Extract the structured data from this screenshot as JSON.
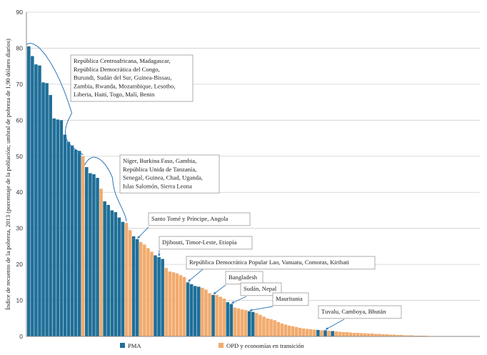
{
  "colors": {
    "pma": "#1f6f98",
    "opd": "#f2ab6d",
    "axis": "#888888",
    "grid": "#cfcfcf",
    "bracket": "#2e74b5"
  },
  "chart_data": {
    "type": "bar",
    "ylabel": "Índice de recuento de la pobreza, 2013 (porcentaje de la población; umbral de pobreza de 1,90 dólares diarios)",
    "ylim": [
      0,
      90
    ],
    "yticks": [
      0,
      10,
      20,
      30,
      40,
      50,
      60,
      70,
      80,
      90
    ],
    "grid": true,
    "legend": {
      "position": "bottom",
      "entries": [
        {
          "key": "P",
          "label": "PMA"
        },
        {
          "key": "O",
          "label": "OPD y economías en transición"
        }
      ]
    },
    "bars": [
      {
        "v": 80.5,
        "g": "P"
      },
      {
        "v": 77.8,
        "g": "P"
      },
      {
        "v": 75.5,
        "g": "P"
      },
      {
        "v": 75.2,
        "g": "P"
      },
      {
        "v": 70.5,
        "g": "P"
      },
      {
        "v": 70.3,
        "g": "P"
      },
      {
        "v": 67.0,
        "g": "P"
      },
      {
        "v": 60.5,
        "g": "P"
      },
      {
        "v": 60.2,
        "g": "P"
      },
      {
        "v": 60.0,
        "g": "P"
      },
      {
        "v": 56.0,
        "g": "P"
      },
      {
        "v": 54.0,
        "g": "P"
      },
      {
        "v": 53.0,
        "g": "P"
      },
      {
        "v": 51.8,
        "g": "P"
      },
      {
        "v": 51.5,
        "g": "P"
      },
      {
        "v": 50.0,
        "g": "O"
      },
      {
        "v": 47.0,
        "g": "P"
      },
      {
        "v": 45.3,
        "g": "P"
      },
      {
        "v": 45.0,
        "g": "P"
      },
      {
        "v": 44.0,
        "g": "P"
      },
      {
        "v": 41.0,
        "g": "O"
      },
      {
        "v": 37.5,
        "g": "P"
      },
      {
        "v": 36.5,
        "g": "P"
      },
      {
        "v": 35.0,
        "g": "P"
      },
      {
        "v": 34.5,
        "g": "P"
      },
      {
        "v": 33.0,
        "g": "P"
      },
      {
        "v": 31.8,
        "g": "P"
      },
      {
        "v": 31.5,
        "g": "O"
      },
      {
        "v": 29.5,
        "g": "O"
      },
      {
        "v": 27.8,
        "g": "P"
      },
      {
        "v": 27.0,
        "g": "P"
      },
      {
        "v": 26.2,
        "g": "O"
      },
      {
        "v": 25.5,
        "g": "O"
      },
      {
        "v": 24.5,
        "g": "O"
      },
      {
        "v": 23.5,
        "g": "O"
      },
      {
        "v": 22.5,
        "g": "P"
      },
      {
        "v": 22.0,
        "g": "P"
      },
      {
        "v": 21.5,
        "g": "P"
      },
      {
        "v": 19.0,
        "g": "O"
      },
      {
        "v": 18.0,
        "g": "O"
      },
      {
        "v": 17.8,
        "g": "O"
      },
      {
        "v": 17.5,
        "g": "O"
      },
      {
        "v": 17.0,
        "g": "O"
      },
      {
        "v": 16.5,
        "g": "O"
      },
      {
        "v": 15.0,
        "g": "P"
      },
      {
        "v": 14.5,
        "g": "P"
      },
      {
        "v": 14.0,
        "g": "P"
      },
      {
        "v": 13.8,
        "g": "P"
      },
      {
        "v": 13.5,
        "g": "O"
      },
      {
        "v": 13.0,
        "g": "O"
      },
      {
        "v": 12.0,
        "g": "O"
      },
      {
        "v": 11.5,
        "g": "P"
      },
      {
        "v": 11.5,
        "g": "O"
      },
      {
        "v": 11.0,
        "g": "O"
      },
      {
        "v": 10.5,
        "g": "O"
      },
      {
        "v": 9.5,
        "g": "P"
      },
      {
        "v": 9.0,
        "g": "P"
      },
      {
        "v": 8.0,
        "g": "O"
      },
      {
        "v": 7.8,
        "g": "O"
      },
      {
        "v": 7.5,
        "g": "O"
      },
      {
        "v": 7.3,
        "g": "O"
      },
      {
        "v": 7.0,
        "g": "P"
      },
      {
        "v": 6.8,
        "g": "P"
      },
      {
        "v": 6.5,
        "g": "O"
      },
      {
        "v": 6.0,
        "g": "O"
      },
      {
        "v": 5.5,
        "g": "O"
      },
      {
        "v": 5.0,
        "g": "O"
      },
      {
        "v": 4.8,
        "g": "O"
      },
      {
        "v": 4.5,
        "g": "O"
      },
      {
        "v": 4.0,
        "g": "O"
      },
      {
        "v": 3.6,
        "g": "O"
      },
      {
        "v": 3.3,
        "g": "O"
      },
      {
        "v": 3.0,
        "g": "O"
      },
      {
        "v": 2.8,
        "g": "O"
      },
      {
        "v": 2.6,
        "g": "O"
      },
      {
        "v": 2.4,
        "g": "O"
      },
      {
        "v": 2.2,
        "g": "O"
      },
      {
        "v": 2.1,
        "g": "O"
      },
      {
        "v": 2.0,
        "g": "O"
      },
      {
        "v": 1.9,
        "g": "O"
      },
      {
        "v": 1.8,
        "g": "P"
      },
      {
        "v": 1.7,
        "g": "O"
      },
      {
        "v": 1.7,
        "g": "P"
      },
      {
        "v": 1.6,
        "g": "O"
      },
      {
        "v": 1.5,
        "g": "P"
      },
      {
        "v": 1.4,
        "g": "O"
      },
      {
        "v": 1.3,
        "g": "O"
      },
      {
        "v": 1.2,
        "g": "O"
      },
      {
        "v": 1.2,
        "g": "O"
      },
      {
        "v": 1.1,
        "g": "O"
      },
      {
        "v": 1.0,
        "g": "O"
      },
      {
        "v": 1.0,
        "g": "O"
      },
      {
        "v": 0.9,
        "g": "O"
      },
      {
        "v": 0.9,
        "g": "O"
      },
      {
        "v": 0.8,
        "g": "O"
      },
      {
        "v": 0.8,
        "g": "O"
      },
      {
        "v": 0.7,
        "g": "O"
      },
      {
        "v": 0.7,
        "g": "O"
      },
      {
        "v": 0.6,
        "g": "O"
      },
      {
        "v": 0.6,
        "g": "O"
      },
      {
        "v": 0.5,
        "g": "O"
      },
      {
        "v": 0.5,
        "g": "O"
      },
      {
        "v": 0.4,
        "g": "O"
      },
      {
        "v": 0.4,
        "g": "O"
      },
      {
        "v": 0.3,
        "g": "O"
      },
      {
        "v": 0.3,
        "g": "O"
      },
      {
        "v": 0.3,
        "g": "O"
      },
      {
        "v": 0.2,
        "g": "O"
      },
      {
        "v": 0.2,
        "g": "O"
      },
      {
        "v": 0.2,
        "g": "O"
      },
      {
        "v": 0.2,
        "g": "O"
      },
      {
        "v": 0.1,
        "g": "O"
      },
      {
        "v": 0.1,
        "g": "O"
      },
      {
        "v": 0.1,
        "g": "O"
      },
      {
        "v": 0.1,
        "g": "O"
      },
      {
        "v": 0.1,
        "g": "O"
      },
      {
        "v": 0.1,
        "g": "O"
      },
      {
        "v": 0.1,
        "g": "O"
      },
      {
        "v": 0.1,
        "g": "O"
      },
      {
        "v": 0.1,
        "g": "O"
      },
      {
        "v": 0.1,
        "g": "O"
      },
      {
        "v": 0.1,
        "g": "O"
      },
      {
        "v": 0.1,
        "g": "O"
      },
      {
        "v": 0.1,
        "g": "O"
      },
      {
        "v": 0.1,
        "g": "O"
      }
    ],
    "annotations": [
      {
        "kind": "bracket",
        "lines": [
          "República Centroafricana, Madagascar,",
          "República Democrática del Congo,",
          "Burundi, Sudán del Sur, Guinea-Bissau,",
          "Zambia, Rwanda, Mozambique, Lesotho,",
          "Liberia, Haití, Togo, Malí, Benin"
        ]
      },
      {
        "kind": "bracket",
        "lines": [
          "Níger, Burkina Faso, Gambia,",
          "República Unida de Tanzanía,",
          "Senegal, Guinea, Chad, Uganda,",
          "Islas Salomón, Sierra Leona"
        ]
      },
      {
        "kind": "arrow",
        "lines": [
          "Santo Tomé y Príncipe, Angola"
        ]
      },
      {
        "kind": "arrow",
        "lines": [
          "Djibouti, Timor-Leste, Etiopía"
        ]
      },
      {
        "kind": "arrow",
        "lines": [
          "República Democrática Popular Lao, Vanuatu, Comoras, Kiribati"
        ]
      },
      {
        "kind": "arrow",
        "lines": [
          "Bangladesh"
        ]
      },
      {
        "kind": "arrow",
        "lines": [
          "Sudán, Nepal"
        ]
      },
      {
        "kind": "arrow",
        "lines": [
          "Mauritania"
        ]
      },
      {
        "kind": "arrow",
        "lines": [
          "Tuvalu, Camboya, Bhután"
        ]
      }
    ]
  }
}
